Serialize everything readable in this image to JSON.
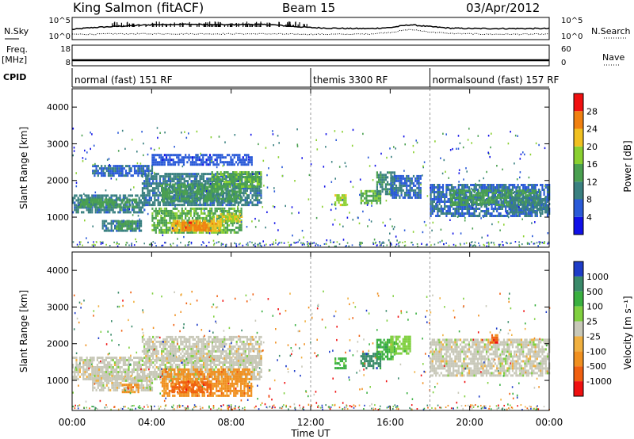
{
  "header": {
    "site_title": "King Salmon (fitACF)",
    "beam": "Beam 15",
    "date": "03/Apr/2012"
  },
  "chart_data": [
    {
      "type": "line",
      "panel": "noise",
      "left_label": "N.Sky",
      "right_label": "N.Search",
      "left_ticks": [
        "10^5",
        "10^0"
      ],
      "right_ticks": [
        "10^5",
        "10^0"
      ],
      "x_hours": [
        0,
        1,
        2,
        3,
        4,
        5,
        6,
        7,
        8,
        9,
        10,
        11,
        12,
        13,
        14,
        15,
        16,
        17,
        18,
        19,
        20,
        21,
        22,
        23,
        24
      ],
      "series": [
        {
          "name": "N.Sky",
          "style": "solid",
          "values": [
            0.45,
            0.55,
            0.6,
            0.65,
            0.7,
            0.72,
            0.72,
            0.7,
            0.7,
            0.72,
            0.7,
            0.62,
            0.55,
            0.52,
            0.5,
            0.5,
            0.55,
            0.7,
            0.6,
            0.52,
            0.5,
            0.5,
            0.5,
            0.5,
            0.5
          ]
        },
        {
          "name": "N.Search",
          "style": "dotted",
          "values": [
            0.2,
            0.2,
            0.22,
            0.22,
            0.22,
            0.22,
            0.22,
            0.22,
            0.22,
            0.22,
            0.22,
            0.2,
            0.2,
            0.2,
            0.2,
            0.22,
            0.3,
            0.45,
            0.32,
            0.24,
            0.22,
            0.2,
            0.2,
            0.2,
            0.2
          ]
        }
      ]
    },
    {
      "type": "line",
      "panel": "frequency",
      "left_label": "Freq.",
      "left_unit": "[MHz]",
      "right_label": "Nave",
      "left_ticks": [
        18,
        8
      ],
      "right_ticks": [
        60,
        0
      ],
      "frequency_mhz": 10.5,
      "nave": 12
    },
    {
      "type": "table",
      "panel": "cpid",
      "label": "CPID",
      "segments": [
        {
          "name": "normal (fast) 151 RF",
          "start_hour": 0,
          "end_hour": 12
        },
        {
          "name": "themis 3300 RF",
          "start_hour": 12,
          "end_hour": 18
        },
        {
          "name": "normalsound (fast) 157 RF",
          "start_hour": 18,
          "end_hour": 24
        }
      ]
    },
    {
      "type": "heatmap",
      "panel": "power",
      "ylabel": "Slant Range [km]",
      "ylim": [
        180,
        4500
      ],
      "yticks": [
        1000,
        2000,
        3000,
        4000
      ],
      "xlim": [
        0,
        24
      ],
      "colorbar_label": "Power [dB]",
      "colorbar_ticks": [
        4,
        8,
        12,
        16,
        20,
        24,
        28
      ],
      "colorbar_range": [
        0,
        30
      ],
      "colors": [
        "#1010e8",
        "#2a5ad8",
        "#3a8080",
        "#4aa050",
        "#8ad030",
        "#f0c020",
        "#f08010",
        "#f01010"
      ],
      "regions": [
        {
          "t": [
            0.0,
            3.6
          ],
          "r": [
            1100,
            1600
          ],
          "v": 8
        },
        {
          "t": [
            0.3,
            3.2
          ],
          "r": [
            1250,
            1450
          ],
          "v": 12
        },
        {
          "t": [
            1.5,
            3.5
          ],
          "r": [
            600,
            900
          ],
          "v": 8
        },
        {
          "t": [
            2.2,
            3.2
          ],
          "r": [
            650,
            850
          ],
          "v": 12
        },
        {
          "t": [
            3.5,
            9.5
          ],
          "r": [
            1300,
            2200
          ],
          "v": 8
        },
        {
          "t": [
            4.5,
            8.5
          ],
          "r": [
            1400,
            1900
          ],
          "v": 12
        },
        {
          "t": [
            7.0,
            9.5
          ],
          "r": [
            1800,
            2200
          ],
          "v": 14
        },
        {
          "t": [
            4.0,
            8.5
          ],
          "r": [
            550,
            1200
          ],
          "v": 14
        },
        {
          "t": [
            5.0,
            7.5
          ],
          "r": [
            600,
            900
          ],
          "v": 22
        },
        {
          "t": [
            5.5,
            6.8
          ],
          "r": [
            620,
            820
          ],
          "v": 26
        },
        {
          "t": [
            7.0,
            8.5
          ],
          "r": [
            850,
            1100
          ],
          "v": 20
        },
        {
          "t": [
            1.0,
            4.0
          ],
          "r": [
            2100,
            2400
          ],
          "v": 6
        },
        {
          "t": [
            4.0,
            9.0
          ],
          "r": [
            2400,
            2700
          ],
          "v": 4
        },
        {
          "t": [
            13.2,
            13.8
          ],
          "r": [
            1300,
            1600
          ],
          "v": 18
        },
        {
          "t": [
            14.5,
            15.5
          ],
          "r": [
            1350,
            1700
          ],
          "v": 14
        },
        {
          "t": [
            15.3,
            16.2
          ],
          "r": [
            1600,
            2200
          ],
          "v": 10
        },
        {
          "t": [
            16.0,
            17.5
          ],
          "r": [
            1500,
            2100
          ],
          "v": 6
        },
        {
          "t": [
            18.0,
            24.0
          ],
          "r": [
            1000,
            1900
          ],
          "v": 6
        },
        {
          "t": [
            19.0,
            23.5
          ],
          "r": [
            1300,
            1700
          ],
          "v": 12
        },
        {
          "t": [
            22.0,
            24.0
          ],
          "r": [
            1100,
            1500
          ],
          "v": 8
        }
      ]
    },
    {
      "type": "heatmap",
      "panel": "velocity",
      "ylabel": "Slant Range [km]",
      "ylim": [
        180,
        4500
      ],
      "yticks": [
        1000,
        2000,
        3000,
        4000
      ],
      "xlim": [
        0,
        24
      ],
      "xticks": [
        "00:00",
        "04:00",
        "08:00",
        "12:00",
        "16:00",
        "20:00",
        "00:00"
      ],
      "xlabel": "Time UT",
      "colorbar_label": "Velocity [m s⁻¹]",
      "colorbar_ticks": [
        "1000",
        "500",
        "100",
        "25",
        "-25",
        "-100",
        "-500",
        "-1000"
      ],
      "colors": [
        "#1e3cc8",
        "#3a8a6a",
        "#3ab040",
        "#80d040",
        "#c8c8b8",
        "#f0b040",
        "#f09020",
        "#f06010",
        "#f01010"
      ],
      "regions": [
        {
          "t": [
            0.0,
            9.5
          ],
          "r": [
            1000,
            1600
          ],
          "v": 0
        },
        {
          "t": [
            3.5,
            9.5
          ],
          "r": [
            1500,
            2200
          ],
          "v": 0
        },
        {
          "t": [
            1.0,
            4.0
          ],
          "r": [
            700,
            1100
          ],
          "v": 0
        },
        {
          "t": [
            2.5,
            3.3
          ],
          "r": [
            650,
            850
          ],
          "v": -200
        },
        {
          "t": [
            4.5,
            9.0
          ],
          "r": [
            550,
            1300
          ],
          "v": -200
        },
        {
          "t": [
            5.0,
            7.0
          ],
          "r": [
            650,
            950
          ],
          "v": -300
        },
        {
          "t": [
            13.2,
            13.8
          ],
          "r": [
            1300,
            1600
          ],
          "v": 150
        },
        {
          "t": [
            14.5,
            15.5
          ],
          "r": [
            1300,
            1700
          ],
          "v": 400
        },
        {
          "t": [
            15.3,
            16.2
          ],
          "r": [
            1550,
            2100
          ],
          "v": 200
        },
        {
          "t": [
            16.0,
            17.0
          ],
          "r": [
            1700,
            2200
          ],
          "v": 50
        },
        {
          "t": [
            18.0,
            24.0
          ],
          "r": [
            1100,
            2100
          ],
          "v": 0
        },
        {
          "t": [
            21.0,
            21.4
          ],
          "r": [
            2000,
            2200
          ],
          "v": -300
        }
      ]
    }
  ]
}
